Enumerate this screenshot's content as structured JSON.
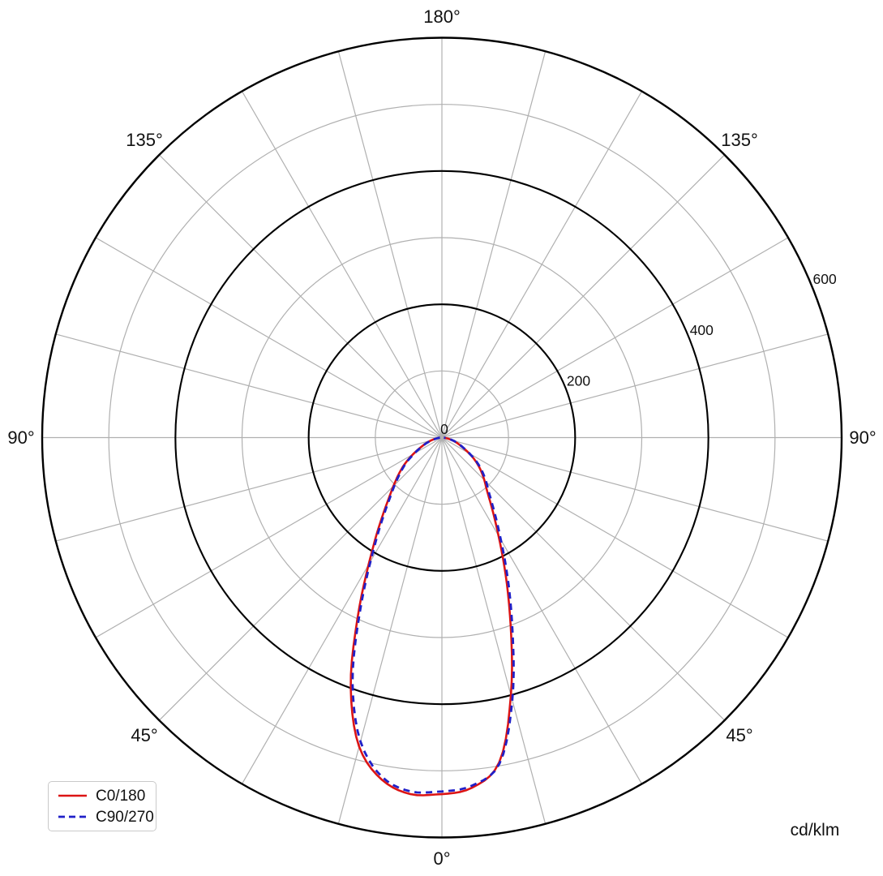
{
  "chart_data": {
    "type": "line",
    "subtype": "polar-photometric-intensity-diagram",
    "title": "",
    "units_label": "cd/klm",
    "radial_axis": {
      "min": 0,
      "max": 600,
      "major_circles": [
        200,
        400,
        600
      ],
      "minor_circles": [
        100,
        300,
        500
      ],
      "tick_labels": [
        "0",
        "200",
        "400",
        "600"
      ],
      "tick_values": [
        0,
        200,
        400,
        600
      ],
      "tick_label_direction_deg_above_horizontal": 22.5
    },
    "angle_axis": {
      "spoke_step_deg": 15,
      "orientation": "0-degrees-at-bottom",
      "labels": [
        {
          "text": "0°",
          "deg": 0
        },
        {
          "text": "45°",
          "deg": 45
        },
        {
          "text": "45°",
          "deg": -45
        },
        {
          "text": "90°",
          "deg": 90
        },
        {
          "text": "90°",
          "deg": -90
        },
        {
          "text": "135°",
          "deg": 135
        },
        {
          "text": "135°",
          "deg": -135
        },
        {
          "text": "180°",
          "deg": 180
        }
      ]
    },
    "series": [
      {
        "name": "C0/180",
        "color": "#dc1414",
        "style": "solid",
        "gamma_deg": [
          0,
          5,
          10,
          15,
          20,
          25,
          30,
          35,
          40,
          45,
          50,
          55,
          60,
          65,
          70,
          75,
          80,
          85,
          90
        ],
        "right_values": [
          535,
          527,
          495,
          400,
          302,
          226,
          170,
          132,
          106,
          90,
          76,
          62,
          47,
          34,
          25,
          17,
          10,
          5,
          3
        ],
        "left_values": [
          535,
          537,
          521,
          480,
          400,
          300,
          220,
          166,
          128,
          103,
          84,
          67,
          50,
          36,
          26,
          17,
          10,
          5,
          3
        ]
      },
      {
        "name": "C90/270",
        "color": "#2020c8",
        "style": "dashed",
        "gamma_deg": [
          0,
          5,
          10,
          15,
          20,
          25,
          30,
          35,
          40,
          45,
          50,
          55,
          60,
          65,
          70,
          75,
          80,
          85,
          90
        ],
        "right_values": [
          531,
          524,
          497,
          408,
          310,
          234,
          177,
          138,
          111,
          94,
          79,
          64,
          48,
          35,
          26,
          18,
          10,
          5,
          3
        ],
        "left_values": [
          531,
          533,
          517,
          472,
          392,
          293,
          214,
          161,
          124,
          100,
          81,
          65,
          48,
          35,
          25,
          16,
          9,
          5,
          3
        ]
      }
    ],
    "legend": {
      "position": "bottom-left",
      "entries": [
        "C0/180",
        "C90/270"
      ]
    },
    "grid": {
      "major_color": "#000000",
      "minor_color": "#b0b0b0",
      "text_color": "#111111",
      "legend_border_color": "#c9c9c9"
    }
  }
}
